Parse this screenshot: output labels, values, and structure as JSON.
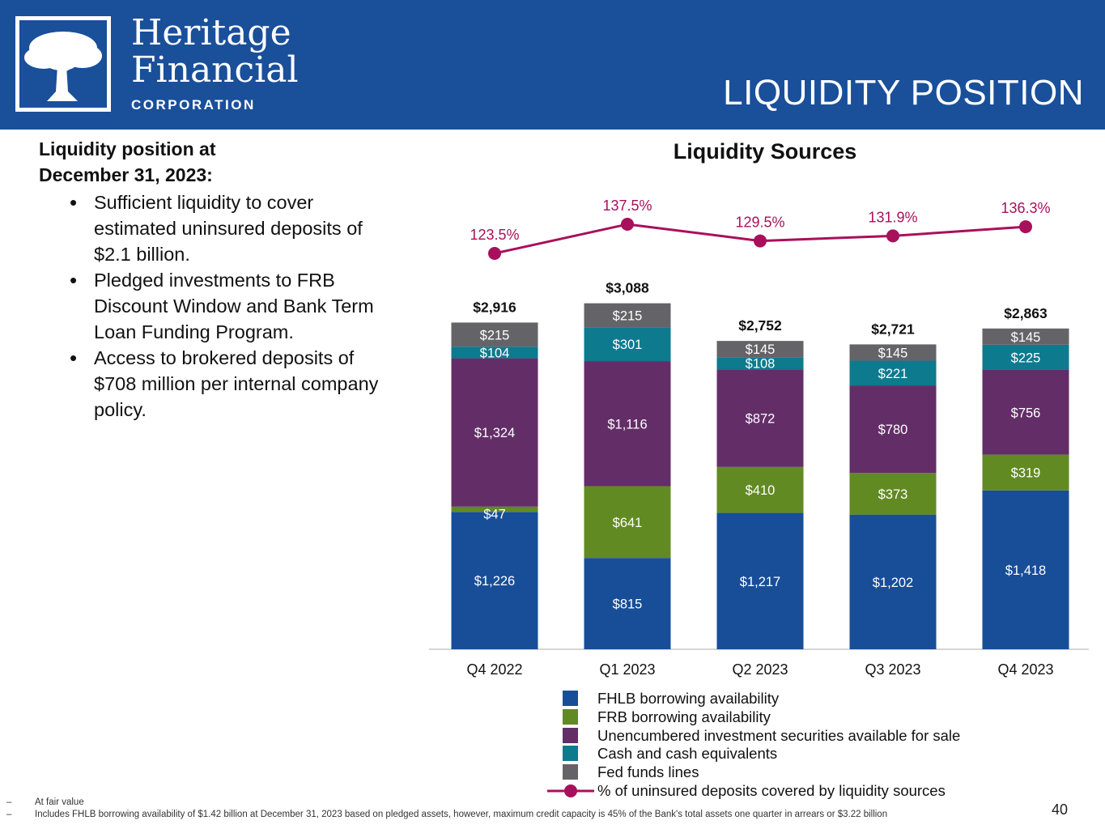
{
  "header": {
    "logo_line1": "Heritage",
    "logo_line2": "Financial",
    "logo_line3": "CORPORATION",
    "title": "LIQUIDITY POSITION"
  },
  "left_panel": {
    "heading_line1": "Liquidity position at",
    "heading_line2": "December 31, 2023:",
    "bullets": [
      "Sufficient liquidity to cover estimated uninsured deposits of $2.1 billion.",
      "Pledged investments to FRB Discount Window and Bank Term Loan Funding Program.",
      "Access to brokered deposits of $708 million per internal company policy."
    ]
  },
  "colors": {
    "header_bg": "#1a4f9a",
    "fhlb": "#184e98",
    "frb": "#628a22",
    "unencumbered": "#632e68",
    "cash": "#0d7a8e",
    "fed_funds": "#646468",
    "line": "#a8105b"
  },
  "chart_data": {
    "type": "bar",
    "stacked": true,
    "title": "Liquidity Sources",
    "categories": [
      "Q4 2022",
      "Q1 2023",
      "Q2 2023",
      "Q3 2023",
      "Q4 2023"
    ],
    "series": [
      {
        "name": "FHLB borrowing availability",
        "values": [
          1226,
          815,
          1217,
          1202,
          1418
        ],
        "labels": [
          "$1,226",
          "$815",
          "$1,217",
          "$1,202",
          "$1,418"
        ]
      },
      {
        "name": "FRB borrowing availability",
        "values": [
          47,
          641,
          410,
          373,
          319
        ],
        "labels": [
          "$47",
          "$641",
          "$410",
          "$373",
          "$319"
        ]
      },
      {
        "name": "Unencumbered investment securities available for sale",
        "values": [
          1324,
          1116,
          872,
          780,
          756
        ],
        "labels": [
          "$1,324",
          "$1,116",
          "$872",
          "$780",
          "$756"
        ]
      },
      {
        "name": "Cash and cash equivalents",
        "values": [
          104,
          301,
          108,
          221,
          225
        ],
        "labels": [
          "$104",
          "$301",
          "$108",
          "$221",
          "$225"
        ]
      },
      {
        "name": "Fed funds lines",
        "values": [
          215,
          215,
          145,
          145,
          145
        ],
        "labels": [
          "$215",
          "$215",
          "$145",
          "$145",
          "$145"
        ]
      }
    ],
    "totals": [
      2916,
      3088,
      2752,
      2721,
      2863
    ],
    "total_labels": [
      "$2,916",
      "$3,088",
      "$2,752",
      "$2,721",
      "$2,863"
    ],
    "line_series": {
      "name": "% of uninsured deposits covered by liquidity sources",
      "values": [
        123.5,
        137.5,
        129.5,
        131.9,
        136.3
      ],
      "labels": [
        "123.5%",
        "137.5%",
        "129.5%",
        "131.9%",
        "136.3%"
      ]
    },
    "ylim": [
      0,
      3150
    ],
    "legend_position": "bottom"
  },
  "footnotes": [
    "At fair value",
    "Includes FHLB borrowing availability of $1.42 billion at December 31, 2023 based on pledged assets, however, maximum credit capacity is 45% of the Bank's total assets one quarter in arrears or $3.22 billion"
  ],
  "footnote_dash": "–",
  "page_number": "40"
}
